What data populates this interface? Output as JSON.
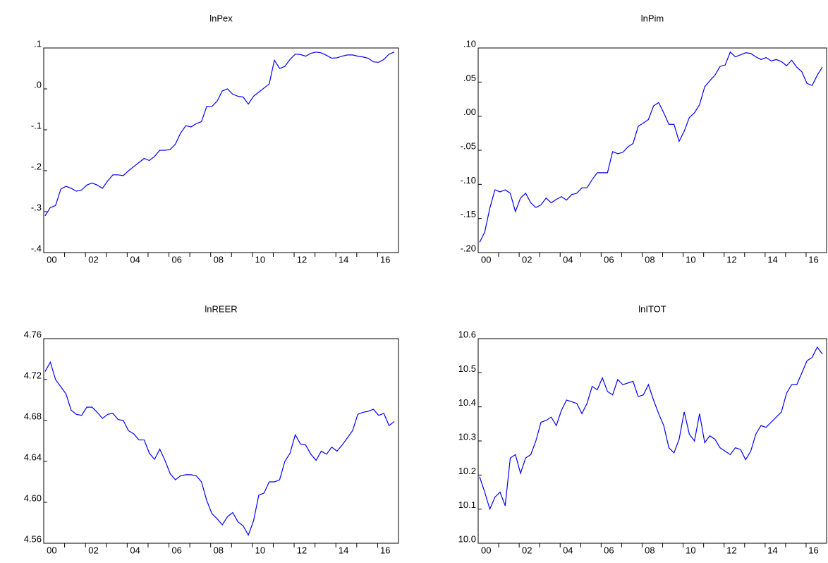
{
  "chart_data": [
    {
      "type": "line",
      "title": "lnPex",
      "color": "#0000ff",
      "categories": [
        null,
        "00",
        null,
        null,
        null,
        null,
        null,
        null,
        null,
        "02",
        null,
        null,
        null,
        null,
        null,
        null,
        null,
        "04",
        null,
        null,
        null,
        null,
        null,
        null,
        null,
        "06",
        null,
        null,
        null,
        null,
        null,
        null,
        null,
        "08",
        null,
        null,
        null,
        null,
        null,
        null,
        null,
        "10",
        null,
        null,
        null,
        null,
        null,
        null,
        null,
        "12",
        null,
        null,
        null,
        null,
        null,
        null,
        null,
        "14",
        null,
        null,
        null,
        null,
        null,
        null,
        null,
        "16",
        null,
        null
      ],
      "values": [
        -0.31,
        -0.29,
        -0.285,
        -0.245,
        -0.238,
        -0.243,
        -0.25,
        -0.247,
        -0.235,
        -0.23,
        -0.235,
        -0.243,
        -0.225,
        -0.21,
        -0.21,
        -0.212,
        -0.2,
        -0.19,
        -0.18,
        -0.17,
        -0.175,
        -0.165,
        -0.15,
        -0.15,
        -0.148,
        -0.135,
        -0.108,
        -0.09,
        -0.093,
        -0.085,
        -0.08,
        -0.043,
        -0.043,
        -0.03,
        -0.005,
        0.0,
        -0.013,
        -0.018,
        -0.02,
        -0.037,
        -0.018,
        -0.008,
        0.002,
        0.012,
        0.07,
        0.05,
        0.055,
        0.072,
        0.085,
        0.084,
        0.08,
        0.087,
        0.09,
        0.088,
        0.082,
        0.075,
        0.076,
        0.08,
        0.083,
        0.083,
        0.08,
        0.078,
        0.075,
        0.066,
        0.065,
        0.072,
        0.085,
        0.09
      ],
      "ylim": [
        -0.4,
        0.1
      ],
      "yticks": [
        {
          "value": -0.4,
          "label": "-.4"
        },
        {
          "value": -0.3,
          "label": "-.3"
        },
        {
          "value": -0.2,
          "label": "-.2"
        },
        {
          "value": -0.1,
          "label": "-.1"
        },
        {
          "value": 0,
          "label": ".0"
        },
        {
          "value": 0.1,
          "label": ".1"
        }
      ]
    },
    {
      "type": "line",
      "title": "lnPim",
      "color": "#0000ff",
      "categories": [
        null,
        "00",
        null,
        null,
        null,
        null,
        null,
        null,
        null,
        "02",
        null,
        null,
        null,
        null,
        null,
        null,
        null,
        "04",
        null,
        null,
        null,
        null,
        null,
        null,
        null,
        "06",
        null,
        null,
        null,
        null,
        null,
        null,
        null,
        "08",
        null,
        null,
        null,
        null,
        null,
        null,
        null,
        "10",
        null,
        null,
        null,
        null,
        null,
        null,
        null,
        "12",
        null,
        null,
        null,
        null,
        null,
        null,
        null,
        "14",
        null,
        null,
        null,
        null,
        null,
        null,
        null,
        "16",
        null,
        null
      ],
      "values": [
        -0.185,
        -0.17,
        -0.135,
        -0.108,
        -0.111,
        -0.108,
        -0.113,
        -0.14,
        -0.12,
        -0.113,
        -0.127,
        -0.134,
        -0.13,
        -0.12,
        -0.127,
        -0.122,
        -0.118,
        -0.123,
        -0.115,
        -0.113,
        -0.105,
        -0.105,
        -0.093,
        -0.083,
        -0.083,
        -0.083,
        -0.052,
        -0.055,
        -0.053,
        -0.045,
        -0.04,
        -0.015,
        -0.01,
        -0.005,
        0.015,
        0.02,
        0.005,
        -0.012,
        -0.012,
        -0.037,
        -0.022,
        -0.002,
        0.005,
        0.017,
        0.043,
        0.052,
        0.06,
        0.073,
        0.075,
        0.094,
        0.087,
        0.09,
        0.093,
        0.092,
        0.087,
        0.083,
        0.086,
        0.081,
        0.083,
        0.08,
        0.074,
        0.082,
        0.072,
        0.065,
        0.048,
        0.045,
        0.06,
        0.072
      ],
      "ylim": [
        -0.2,
        0.1
      ],
      "yticks": [
        {
          "value": -0.2,
          "label": "-.20"
        },
        {
          "value": -0.15,
          "label": "-.15"
        },
        {
          "value": -0.1,
          "label": "-.10"
        },
        {
          "value": -0.05,
          "label": "-.05"
        },
        {
          "value": 0,
          "label": ".00"
        },
        {
          "value": 0.05,
          "label": ".05"
        },
        {
          "value": 0.1,
          "label": ".10"
        }
      ]
    },
    {
      "type": "line",
      "title": "lnREER",
      "color": "#0000ff",
      "categories": [
        null,
        "00",
        null,
        null,
        null,
        null,
        null,
        null,
        null,
        "02",
        null,
        null,
        null,
        null,
        null,
        null,
        null,
        "04",
        null,
        null,
        null,
        null,
        null,
        null,
        null,
        "06",
        null,
        null,
        null,
        null,
        null,
        null,
        null,
        "08",
        null,
        null,
        null,
        null,
        null,
        null,
        null,
        "10",
        null,
        null,
        null,
        null,
        null,
        null,
        null,
        "12",
        null,
        null,
        null,
        null,
        null,
        null,
        null,
        "14",
        null,
        null,
        null,
        null,
        null,
        null,
        null,
        "16",
        null,
        null
      ],
      "values": [
        4.728,
        4.737,
        4.72,
        4.713,
        4.706,
        4.69,
        4.686,
        4.685,
        4.693,
        4.693,
        4.688,
        4.682,
        4.686,
        4.687,
        4.681,
        4.68,
        4.67,
        4.667,
        4.661,
        4.661,
        4.648,
        4.642,
        4.652,
        4.641,
        4.628,
        4.622,
        4.626,
        4.627,
        4.627,
        4.626,
        4.62,
        4.602,
        4.589,
        4.584,
        4.578,
        4.586,
        4.59,
        4.581,
        4.577,
        4.568,
        4.582,
        4.607,
        4.609,
        4.62,
        4.62,
        4.622,
        4.64,
        4.648,
        4.666,
        4.657,
        4.656,
        4.647,
        4.641,
        4.65,
        4.647,
        4.654,
        4.65,
        4.656,
        4.663,
        4.67,
        4.686,
        4.688,
        4.689,
        4.691,
        4.685,
        4.687,
        4.675,
        4.679
      ],
      "ylim": [
        4.56,
        4.76
      ],
      "yticks": [
        4.56,
        {
          "value": 4.6,
          "label": "4.60"
        },
        4.64,
        4.68,
        4.72,
        4.76
      ]
    },
    {
      "type": "line",
      "title": "lnITOT",
      "color": "#0000ff",
      "categories": [
        null,
        "00",
        null,
        null,
        null,
        null,
        null,
        null,
        null,
        "02",
        null,
        null,
        null,
        null,
        null,
        null,
        null,
        "04",
        null,
        null,
        null,
        null,
        null,
        null,
        null,
        "06",
        null,
        null,
        null,
        null,
        null,
        null,
        null,
        "08",
        null,
        null,
        null,
        null,
        null,
        null,
        null,
        "10",
        null,
        null,
        null,
        null,
        null,
        null,
        null,
        "12",
        null,
        null,
        null,
        null,
        null,
        null,
        null,
        "14",
        null,
        null,
        null,
        null,
        null,
        null,
        null,
        "16",
        null,
        null
      ],
      "values": [
        10.195,
        10.15,
        10.1,
        10.135,
        10.15,
        10.11,
        10.25,
        10.26,
        10.205,
        10.25,
        10.26,
        10.3,
        10.355,
        10.36,
        10.37,
        10.345,
        10.39,
        10.42,
        10.415,
        10.41,
        10.38,
        10.41,
        10.46,
        10.45,
        10.485,
        10.445,
        10.435,
        10.48,
        10.465,
        10.47,
        10.475,
        10.43,
        10.435,
        10.465,
        10.42,
        10.38,
        10.345,
        10.28,
        10.265,
        10.305,
        10.385,
        10.32,
        10.3,
        10.38,
        10.295,
        10.315,
        10.305,
        10.28,
        10.27,
        10.26,
        10.28,
        10.275,
        10.245,
        10.27,
        10.32,
        10.345,
        10.34,
        10.355,
        10.37,
        10.385,
        10.44,
        10.465,
        10.465,
        10.5,
        10.535,
        10.545,
        10.575,
        10.555
      ],
      "ylim": [
        10.0,
        10.6
      ],
      "yticks": [
        {
          "value": 10.0,
          "label": "10.0"
        },
        10.1,
        10.2,
        10.3,
        10.4,
        10.5,
        {
          "value": 10.6,
          "label": "10.6"
        }
      ]
    }
  ]
}
